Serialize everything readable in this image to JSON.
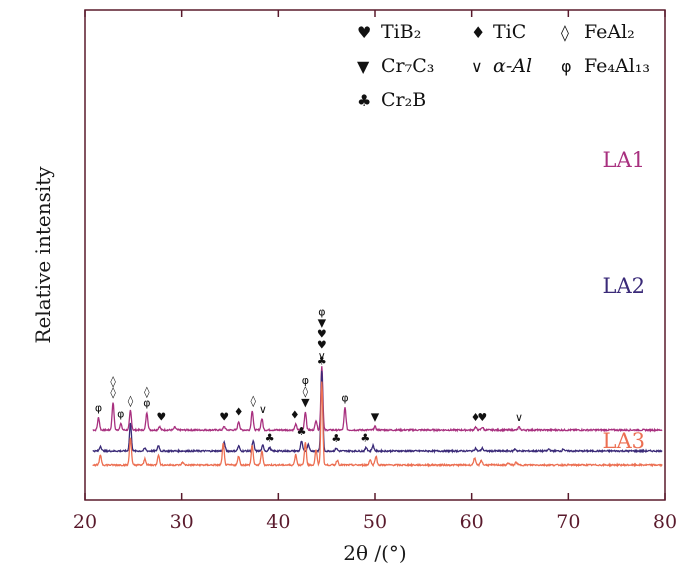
{
  "chart_data": {
    "type": "line",
    "title": "",
    "xlabel": "2θ /(°)",
    "ylabel": "Relative intensity",
    "xlim": [
      20,
      80
    ],
    "x_ticks": [
      20,
      30,
      40,
      50,
      60,
      70,
      80
    ],
    "colors": {
      "axis": "#5a1a2c",
      "LA1": "#a8307f",
      "LA2": "#3a2a78",
      "LA3": "#ec6f52"
    },
    "legend": [
      {
        "symbol": "♥",
        "label": "TiB₂"
      },
      {
        "symbol": "♦",
        "label": "TiC"
      },
      {
        "symbol": "◊",
        "label": "FeAl₂"
      },
      {
        "symbol": "▼",
        "label": "Cr₇C₃"
      },
      {
        "symbol": "∨",
        "label": "α-Al"
      },
      {
        "symbol": "φ",
        "label": "Fe₄Al₁₃"
      },
      {
        "symbol": "♣",
        "label": "Cr₂B"
      }
    ],
    "series": [
      {
        "name": "LA1",
        "baseline": 100,
        "peaks": [
          [
            21.4,
            18
          ],
          [
            22.9,
            40
          ],
          [
            23.7,
            9
          ],
          [
            24.7,
            28
          ],
          [
            26.4,
            25
          ],
          [
            27.7,
            5
          ],
          [
            29.3,
            4
          ],
          [
            34.4,
            5
          ],
          [
            35.9,
            12
          ],
          [
            37.3,
            28
          ],
          [
            38.3,
            16
          ],
          [
            41.8,
            8
          ],
          [
            42.8,
            26
          ],
          [
            43.9,
            14
          ],
          [
            44.5,
            92
          ],
          [
            46.9,
            32
          ],
          [
            50.0,
            5
          ],
          [
            60.4,
            4
          ],
          [
            61.1,
            4
          ],
          [
            64.9,
            4
          ]
        ],
        "markers": [
          {
            "x": 21.4,
            "s": "φ"
          },
          {
            "x": 22.9,
            "s": "◊◊"
          },
          {
            "x": 23.7,
            "s": "φ"
          },
          {
            "x": 24.7,
            "s": "◊"
          },
          {
            "x": 26.4,
            "s": "◊φ"
          },
          {
            "x": 27.9,
            "s": "♥"
          },
          {
            "x": 34.4,
            "s": "♥"
          },
          {
            "x": 35.9,
            "s": "♦"
          },
          {
            "x": 37.4,
            "s": "◊"
          },
          {
            "x": 38.4,
            "s": "∨"
          },
          {
            "x": 41.7,
            "s": "♦"
          },
          {
            "x": 42.8,
            "s": "φ◊▼"
          },
          {
            "x": 44.5,
            "s": "φ▼♥♥∨"
          },
          {
            "x": 46.9,
            "s": "φ"
          },
          {
            "x": 50.0,
            "s": "▼"
          },
          {
            "x": 60.4,
            "s": "♦"
          },
          {
            "x": 61.1,
            "s": "♥"
          },
          {
            "x": 64.9,
            "s": "∨"
          }
        ]
      },
      {
        "name": "LA2",
        "baseline": 70,
        "peaks": [
          [
            21.6,
            7
          ],
          [
            24.7,
            40
          ],
          [
            26.2,
            4
          ],
          [
            27.6,
            8
          ],
          [
            34.4,
            12
          ],
          [
            35.9,
            7
          ],
          [
            37.4,
            14
          ],
          [
            38.4,
            8
          ],
          [
            39.1,
            5
          ],
          [
            42.4,
            14
          ],
          [
            43.1,
            10
          ],
          [
            44.5,
            115
          ],
          [
            46.0,
            4
          ],
          [
            49.1,
            5
          ],
          [
            49.8,
            8
          ],
          [
            60.4,
            4
          ],
          [
            61.1,
            4
          ],
          [
            64.5,
            3
          ],
          [
            68.0,
            3
          ],
          [
            69.5,
            3
          ]
        ],
        "markers": [
          {
            "x": 39.1,
            "s": "♣"
          },
          {
            "x": 42.4,
            "s": "♣"
          },
          {
            "x": 44.5,
            "s": "♣"
          },
          {
            "x": 46.0,
            "s": "♣"
          },
          {
            "x": 49.0,
            "s": "♣"
          }
        ]
      },
      {
        "name": "LA3",
        "baseline": 50,
        "peaks": [
          [
            21.6,
            14
          ],
          [
            24.7,
            40
          ],
          [
            26.2,
            9
          ],
          [
            27.6,
            15
          ],
          [
            30.1,
            4
          ],
          [
            34.3,
            31
          ],
          [
            35.9,
            13
          ],
          [
            37.3,
            28
          ],
          [
            38.3,
            20
          ],
          [
            41.8,
            15
          ],
          [
            42.8,
            32
          ],
          [
            43.9,
            22
          ],
          [
            44.5,
            120
          ],
          [
            46.1,
            7
          ],
          [
            49.5,
            8
          ],
          [
            50.1,
            13
          ],
          [
            60.3,
            10
          ],
          [
            61.0,
            7
          ],
          [
            63.8,
            3
          ],
          [
            64.6,
            4
          ]
        ],
        "markers": []
      }
    ]
  }
}
